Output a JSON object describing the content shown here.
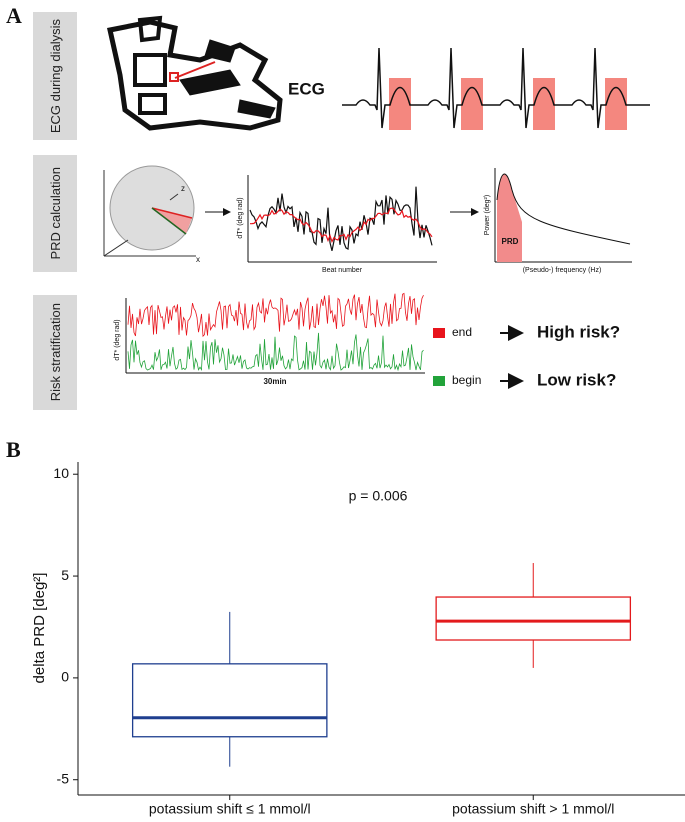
{
  "panel_a": {
    "label": "A",
    "ecg_row": {
      "label": "ECG during dialysis",
      "ecg": "ECG"
    },
    "prd_row": {
      "label": "PRD calculation",
      "axis_z": "z",
      "axis_x": "x",
      "trace_ylabel": "dT* (deg rad)",
      "trace_xlabel": "Beat number",
      "spectrum_ylabel": "Power (deg²)",
      "spectrum_area": "PRD",
      "spectrum_xlabel": "(Pseudo-) frequency (Hz)"
    },
    "risk_row": {
      "label": "Risk stratification",
      "ylabel": "dT* (deg rad)",
      "xlabel": "30min",
      "legend": [
        {
          "name": "end",
          "color": "#e8141c",
          "outcome": "High risk?"
        },
        {
          "name": "begin",
          "color": "#22a33a",
          "outcome": "Low risk?"
        }
      ]
    }
  },
  "chart_data": {
    "type": "box",
    "label": "B",
    "ylabel": "delta PRD [deg²]",
    "annotation": "p = 0.006",
    "categories": [
      "potassium shift ≤ 1 mmol/l",
      "potassium shift > 1 mmol/l"
    ],
    "boxes": [
      {
        "whisker_low": -4.36,
        "q1": -2.89,
        "median": -1.96,
        "q3": 0.69,
        "whisker_high": 3.24,
        "color": "#1f3f8f"
      },
      {
        "whisker_low": 0.49,
        "q1": 1.86,
        "median": 2.79,
        "q3": 3.97,
        "whisker_high": 5.64,
        "color": "#e31a1c"
      }
    ],
    "ylim": [
      -5.75,
      10.6
    ],
    "yticks": [
      -5,
      0,
      5,
      10
    ]
  }
}
